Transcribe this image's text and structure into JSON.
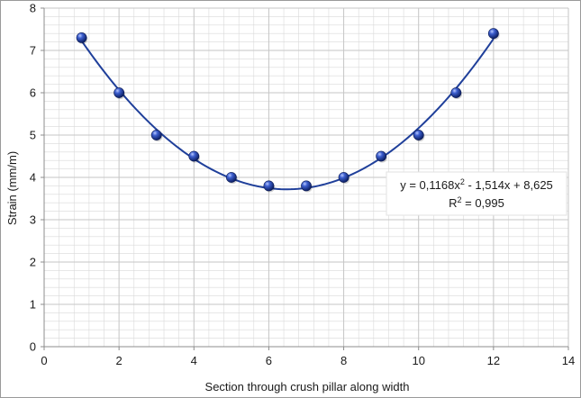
{
  "chart_data": {
    "type": "scatter",
    "x": [
      1,
      2,
      3,
      4,
      5,
      6,
      7,
      8,
      9,
      10,
      11,
      12
    ],
    "series": [
      {
        "values": [
          7.3,
          6.0,
          5.0,
          4.5,
          4.0,
          3.8,
          3.8,
          4.0,
          4.5,
          5.0,
          6.0,
          7.4
        ],
        "marker": "sphere",
        "color": "#1f3f9a"
      }
    ],
    "trendline": {
      "type": "polynomial",
      "degree": 2,
      "coefficients": [
        0.1168,
        -1.514,
        8.625
      ],
      "x_range": [
        1,
        12
      ],
      "color": "#1f3f9a",
      "equation_label": "y = 0,1168x",
      "equation_rest": " - 1,514x + 8,625",
      "superscript": "2",
      "r2_label": "R",
      "r2_rest": " = 0,995"
    },
    "xlabel": "Section through crush pillar along width",
    "ylabel": "Strain (mm/m)",
    "xlim": [
      0,
      14
    ],
    "ylim": [
      0,
      8
    ],
    "x_ticks": [
      0,
      2,
      4,
      6,
      8,
      10,
      12,
      14
    ],
    "y_ticks": [
      0,
      1,
      2,
      3,
      4,
      5,
      6,
      7,
      8
    ],
    "grid": true,
    "minor_grid": true,
    "grid_color": "#d9d9d9",
    "major_grid_color": "#c6c6c6"
  }
}
